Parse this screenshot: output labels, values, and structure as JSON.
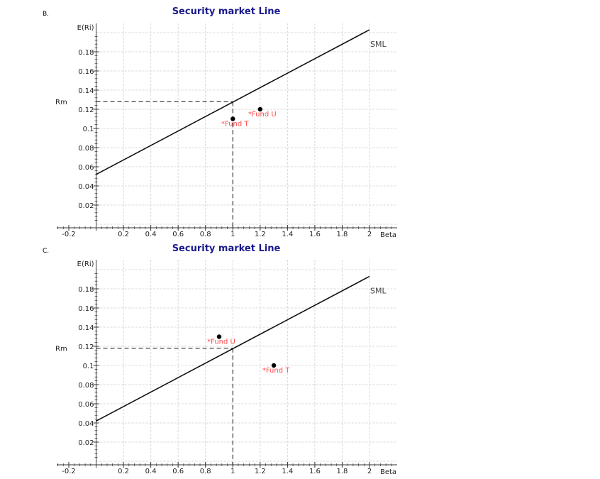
{
  "chart_data": [
    {
      "type": "line",
      "option": "B.",
      "title": "Security market Line",
      "xlabel": "Beta",
      "ylabel": "E(Ri)",
      "rm_label": "Rm",
      "xlim": [
        -0.3,
        2.2
      ],
      "ylim": [
        -0.003,
        0.203
      ],
      "x_ticks": [
        -0.2,
        0.2,
        0.4,
        0.6,
        0.8,
        1,
        1.2,
        1.4,
        1.6,
        1.8,
        2
      ],
      "x_tick_labels": [
        "-0.2",
        "0.2",
        "0.4",
        "0.6",
        "0.8",
        "1",
        "1.2",
        "1.4",
        "1.6",
        "1.8",
        "2"
      ],
      "y_ticks": [
        0.02,
        0.04,
        0.06,
        0.08,
        0.1,
        0.12,
        0.14,
        0.16,
        0.18
      ],
      "y_tick_labels": [
        "0.02",
        "0.04",
        "0.06",
        "0.08",
        "0.1",
        "0.12",
        "0.14",
        "0.16",
        "0.18"
      ],
      "series": [
        {
          "name": "SML",
          "x": [
            0,
            2
          ],
          "y": [
            0.052,
            0.203
          ]
        }
      ],
      "market_point": {
        "x": 1,
        "y": 0.128
      },
      "points": [
        {
          "label": "*Fund T",
          "x": 1.0,
          "y": 0.11
        },
        {
          "label": "*Fund U",
          "x": 1.2,
          "y": 0.12
        }
      ],
      "grid": true
    },
    {
      "type": "line",
      "option": "C.",
      "title": "Security market Line",
      "xlabel": "Beta",
      "ylabel": "E(Ri)",
      "rm_label": "Rm",
      "xlim": [
        -0.3,
        2.2
      ],
      "ylim": [
        -0.003,
        0.203
      ],
      "x_ticks": [
        -0.2,
        0.2,
        0.4,
        0.6,
        0.8,
        1,
        1.2,
        1.4,
        1.6,
        1.8,
        2
      ],
      "x_tick_labels": [
        "-0.2",
        "0.2",
        "0.4",
        "0.6",
        "0.8",
        "1",
        "1.2",
        "1.4",
        "1.6",
        "1.8",
        "2"
      ],
      "y_ticks": [
        0.02,
        0.04,
        0.06,
        0.08,
        0.1,
        0.12,
        0.14,
        0.16,
        0.18
      ],
      "y_tick_labels": [
        "0.02",
        "0.04",
        "0.06",
        "0.08",
        "0.1",
        "0.12",
        "0.14",
        "0.16",
        "0.18"
      ],
      "series": [
        {
          "name": "SML",
          "x": [
            0,
            2
          ],
          "y": [
            0.042,
            0.193
          ]
        }
      ],
      "market_point": {
        "x": 1,
        "y": 0.118
      },
      "points": [
        {
          "label": "*Fund U",
          "x": 0.9,
          "y": 0.13
        },
        {
          "label": "*Fund T",
          "x": 1.3,
          "y": 0.1
        }
      ],
      "grid": true
    }
  ]
}
